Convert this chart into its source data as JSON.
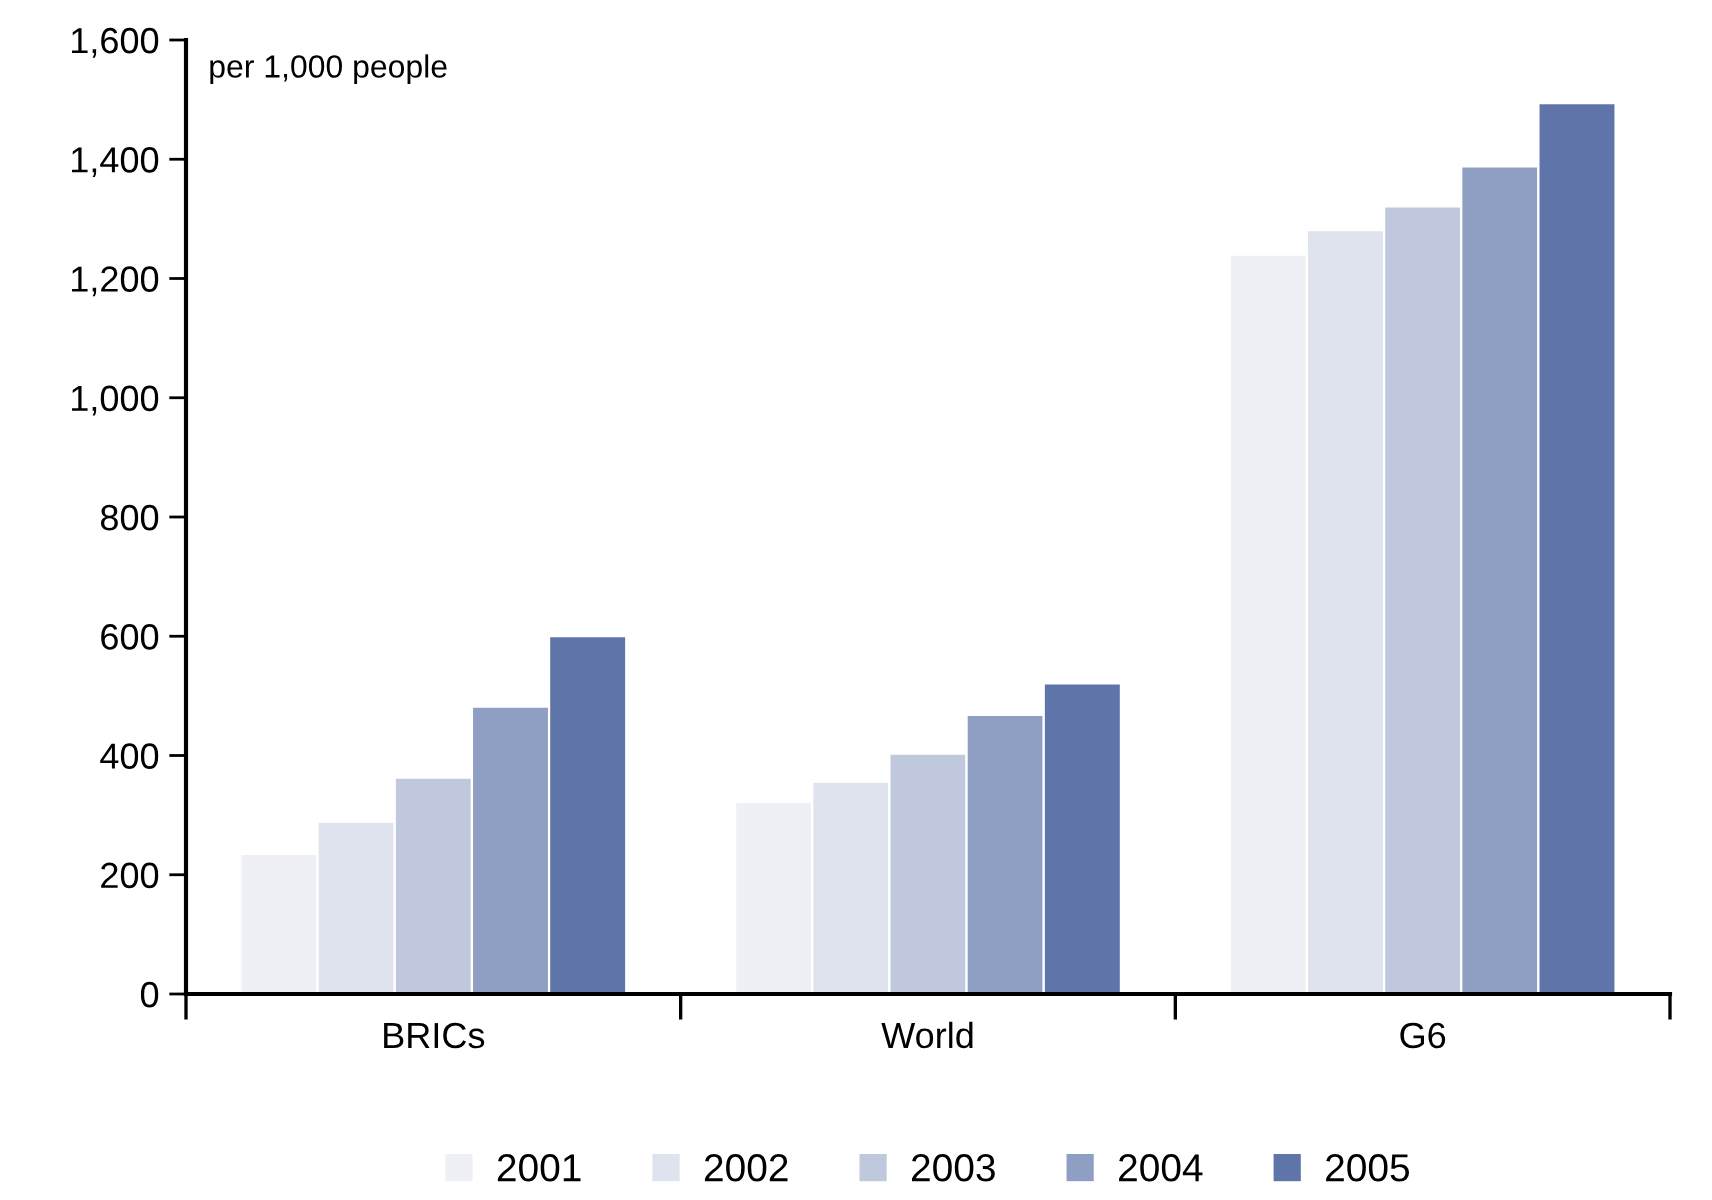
{
  "chart_data": {
    "type": "bar",
    "categories": [
      "BRICs",
      "World",
      "G6"
    ],
    "series": [
      {
        "name": "2001",
        "color": "#eef0f6",
        "values": [
          235,
          322,
          1240
        ]
      },
      {
        "name": "2002",
        "color": "#dfe3ee",
        "values": [
          289,
          356,
          1281
        ]
      },
      {
        "name": "2003",
        "color": "#c0c8dd",
        "values": [
          363,
          403,
          1321
        ]
      },
      {
        "name": "2004",
        "color": "#8f9fc4",
        "values": [
          482,
          468,
          1388
        ]
      },
      {
        "name": "2005",
        "color": "#5f75a9",
        "values": [
          600,
          521,
          1494
        ]
      }
    ],
    "ylim": [
      0,
      1600
    ],
    "yticks": [
      0,
      {
        "value": 200,
        "label": "200"
      },
      {
        "value": 400,
        "label": "400"
      },
      {
        "value": 600,
        "label": "600"
      },
      {
        "value": 800,
        "label": "800"
      },
      {
        "value": 1000,
        "label": "1,000"
      },
      {
        "value": 1200,
        "label": "1,200"
      },
      {
        "value": 1400,
        "label": "1,400"
      },
      {
        "value": 1600,
        "label": "1,600"
      }
    ],
    "annotations": [
      "per 1,000 people"
    ],
    "legend": "bottom",
    "grid": false
  }
}
